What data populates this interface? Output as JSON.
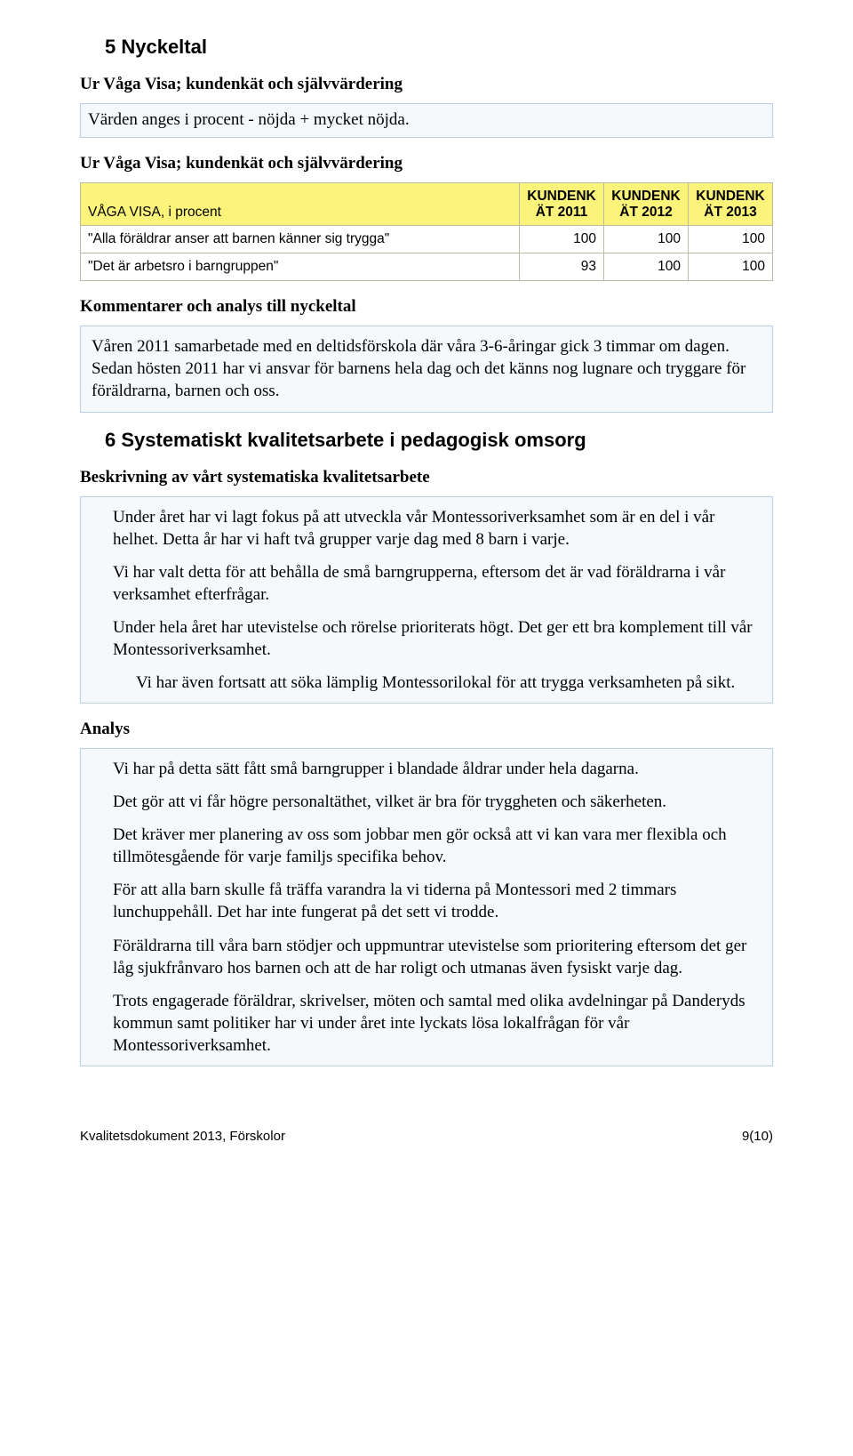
{
  "section5": {
    "title": "5 Nyckeltal",
    "sub1": "Ur Våga Visa; kundenkät och självvärdering",
    "note": "Värden anges i procent - nöjda + mycket nöjda.",
    "sub2": "Ur Våga Visa; kundenkät och självvärdering",
    "table": {
      "caption": "VÅGA VISA, i procent",
      "headers": [
        "KUNDENK\nÄT 2011",
        "KUNDENK\nÄT 2012",
        "KUNDENK\nÄT 2013"
      ],
      "rows": [
        {
          "label": "\"Alla föräldrar anser att barnen känner sig trygga\"",
          "vals": [
            "100",
            "100",
            "100"
          ]
        },
        {
          "label": "\"Det är arbetsro i barngruppen\"",
          "vals": [
            "93",
            "100",
            "100"
          ]
        }
      ],
      "header_bg": "#fcf47a"
    },
    "commentsHeading": "Kommentarer och analys till nyckeltal",
    "commentsBody": "Våren 2011 samarbetade med en deltidsförskola där våra 3-6-åringar gick 3 timmar om dagen. Sedan hösten 2011 har vi ansvar för barnens hela dag och det känns nog lugnare och tryggare för föräldrarna, barnen och oss."
  },
  "section6": {
    "title": "6 Systematiskt kvalitetsarbete i pedagogisk omsorg",
    "descHeading": "Beskrivning av vårt systematiska kvalitetsarbete",
    "descParas": [
      "Under året har vi lagt fokus på att utveckla vår Montessoriverksamhet som är en del i vår helhet. Detta år har vi haft två grupper varje dag med 8 barn i varje.",
      "Vi har valt detta för att behålla de små barngrupperna, eftersom det är vad föräldrarna i vår verksamhet efterfrågar.",
      "Under hela året har utevistelse och rörelse prioriterats högt. Det ger ett bra komplement till vår Montessoriverksamhet.",
      "Vi har även fortsatt att söka lämplig Montessorilokal för att trygga verksamheten på sikt."
    ],
    "analysHeading": "Analys",
    "analysParas": [
      "Vi har på detta sätt fått små barngrupper i blandade åldrar under hela dagarna.",
      "Det gör att vi får högre personaltäthet, vilket är bra för tryggheten och säkerheten.",
      "Det kräver mer planering av oss som jobbar men gör också att vi kan vara mer flexibla och tillmötesgående för varje familjs specifika behov.",
      "För att alla barn skulle få träffa varandra la vi tiderna på Montessori med 2 timmars lunchuppehåll. Det har inte fungerat på det sett vi trodde.",
      "Föräldrarna till våra barn stödjer och uppmuntrar utevistelse som prioritering eftersom det ger låg sjukfrånvaro hos barnen och att de har roligt och utmanas även fysiskt varje dag.",
      "Trots engagerade föräldrar, skrivelser, möten och samtal med olika avdelningar på Danderyds kommun samt politiker har vi under året inte lyckats lösa lokalfrågan för vår Montessoriverksamhet."
    ]
  },
  "footer": {
    "left": "Kvalitetsdokument 2013, Förskolor",
    "right": "9(10)"
  }
}
